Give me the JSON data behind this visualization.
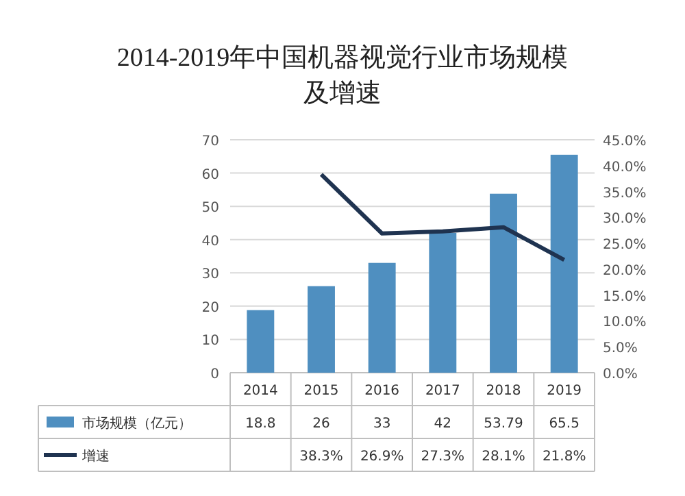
{
  "chart_data": {
    "type": "bar",
    "title": "2014-2019年中国机器视觉行业市场规模及增速",
    "categories": [
      "2014",
      "2015",
      "2016",
      "2017",
      "2018",
      "2019"
    ],
    "series": [
      {
        "name": "市场规模（亿元）",
        "color": "#4f8fc0",
        "values": [
          18.8,
          26,
          33,
          42,
          53.79,
          65.5
        ],
        "value_labels": [
          "18.8",
          "26",
          "33",
          "42",
          "53.79",
          "65.5"
        ]
      },
      {
        "name": "增速",
        "type": "line",
        "axis": "y2",
        "color": "#1f3350",
        "values": [
          null,
          38.3,
          26.9,
          27.3,
          28.1,
          21.8
        ],
        "value_labels": [
          null,
          "38.3%",
          "26.9%",
          "27.3%",
          "28.1%",
          "21.8%"
        ]
      }
    ],
    "ylim": [
      0,
      70
    ],
    "yticks": [
      0,
      10,
      20,
      30,
      40,
      50,
      60,
      70
    ],
    "y2lim": [
      0,
      45
    ],
    "y2ticks": [
      {
        "value": 0,
        "label": "0.0%"
      },
      {
        "value": 5,
        "label": "5.0%"
      },
      {
        "value": 10,
        "label": "10.0%"
      },
      {
        "value": 15,
        "label": "15.0%"
      },
      {
        "value": 20,
        "label": "20.0%"
      },
      {
        "value": 25,
        "label": "25.0%"
      },
      {
        "value": 30,
        "label": "30.0%"
      },
      {
        "value": 35,
        "label": "35.0%"
      },
      {
        "value": 40,
        "label": "40.0%"
      },
      {
        "value": 45,
        "label": "45.0%"
      }
    ],
    "grid": "y",
    "legend": "bottom",
    "marker": "none",
    "line_style": "solid"
  }
}
